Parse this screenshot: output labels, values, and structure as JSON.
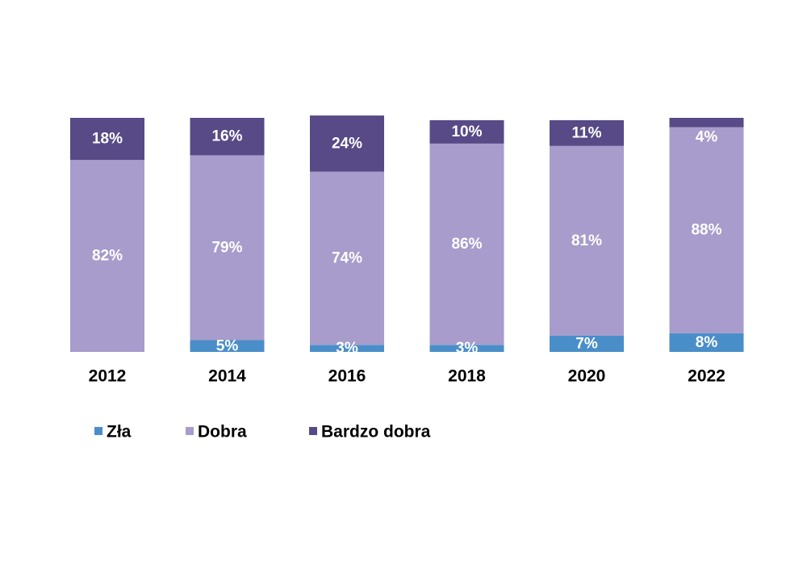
{
  "chart_data": {
    "type": "bar",
    "stacked": true,
    "categories": [
      "2012",
      "2014",
      "2016",
      "2018",
      "2020",
      "2022"
    ],
    "ylim": [
      0,
      100
    ],
    "grid": false,
    "legend_position": "bottom-left",
    "series": [
      {
        "name": "Zła",
        "color": "#4a8ec9",
        "values": [
          0,
          5,
          3,
          3,
          7,
          8
        ],
        "labels": [
          "",
          "5%",
          "3%",
          "3%",
          "7%",
          "8%"
        ]
      },
      {
        "name": "Dobra",
        "color": "#a79ccb",
        "values": [
          82,
          79,
          74,
          86,
          81,
          88
        ],
        "labels": [
          "82%",
          "79%",
          "74%",
          "86%",
          "81%",
          "88%"
        ]
      },
      {
        "name": "Bardzo dobra",
        "color": "#574a86",
        "values": [
          18,
          16,
          24,
          10,
          11,
          4
        ],
        "labels": [
          "18%",
          "16%",
          "24%",
          "10%",
          "11%",
          ""
        ]
      }
    ],
    "outside_labels": [
      "",
      "",
      "",
      "",
      "",
      "4%"
    ]
  }
}
